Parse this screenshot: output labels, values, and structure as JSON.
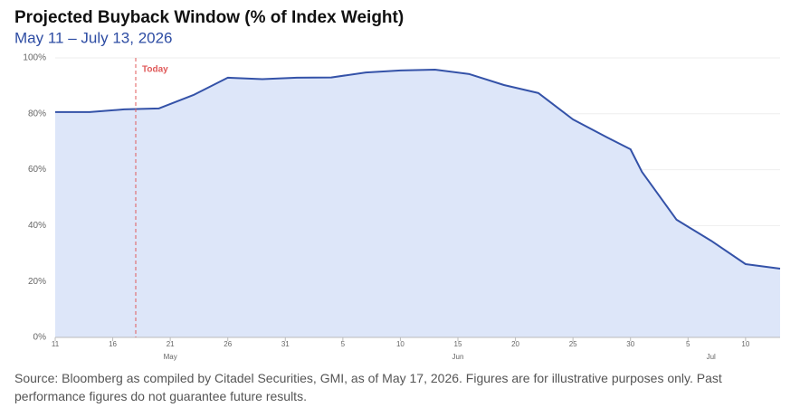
{
  "chart_data": {
    "type": "area",
    "title": "Projected Buyback Window (% of Index Weight)",
    "subtitle": "May 11 – July 13, 2026",
    "source": "Source: Bloomberg as compiled by Citadel Securities, GMI, as of May 17, 2026. Figures are for illustrative purposes only. Past performance figures do not guarantee future results.",
    "x": [
      "05-11",
      "05-14",
      "05-17",
      "05-20",
      "05-23",
      "05-26",
      "05-29",
      "06-01",
      "06-04",
      "06-07",
      "06-10",
      "06-13",
      "06-16",
      "06-19",
      "06-22",
      "06-25",
      "06-28",
      "06-30",
      "07-01",
      "07-04",
      "07-07",
      "07-10",
      "07-13"
    ],
    "values": [
      80.6,
      80.6,
      81.6,
      81.9,
      86.7,
      92.9,
      92.4,
      92.9,
      93.0,
      94.8,
      95.5,
      95.8,
      94.2,
      90.3,
      87.4,
      78.0,
      71.5,
      67.3,
      59.2,
      42.1,
      34.6,
      26.2,
      24.6
    ],
    "color": "#3452a8",
    "fill": "#dde6f9",
    "xlim": [
      "05-11",
      "07-13"
    ],
    "xticks": [
      {
        "value": "05-11",
        "label": "11"
      },
      {
        "value": "05-16",
        "label": "16"
      },
      {
        "value": "05-21",
        "label": "21"
      },
      {
        "value": "05-26",
        "label": "26"
      },
      {
        "value": "05-31",
        "label": "31"
      },
      {
        "value": "06-05",
        "label": "5"
      },
      {
        "value": "06-10",
        "label": "10"
      },
      {
        "value": "06-15",
        "label": "15"
      },
      {
        "value": "06-20",
        "label": "20"
      },
      {
        "value": "06-25",
        "label": "25"
      },
      {
        "value": "06-30",
        "label": "30"
      },
      {
        "value": "07-05",
        "label": "5"
      },
      {
        "value": "07-10",
        "label": "10"
      }
    ],
    "month_labels": [
      {
        "value": "05-21",
        "label": "May"
      },
      {
        "value": "06-15",
        "label": "Jun"
      },
      {
        "value": "07-07",
        "label": "Jul"
      }
    ],
    "ylim": [
      0,
      100
    ],
    "yticks": [
      {
        "value": 0,
        "label": "0%"
      },
      {
        "value": 20,
        "label": "20%"
      },
      {
        "value": 40,
        "label": "40%"
      },
      {
        "value": 60,
        "label": "60%"
      },
      {
        "value": 80,
        "label": "80%"
      },
      {
        "value": 100,
        "label": "100%"
      }
    ],
    "grid": true,
    "today_line": {
      "x": "05-18",
      "label": "Today",
      "color": "#e05a5a"
    }
  }
}
